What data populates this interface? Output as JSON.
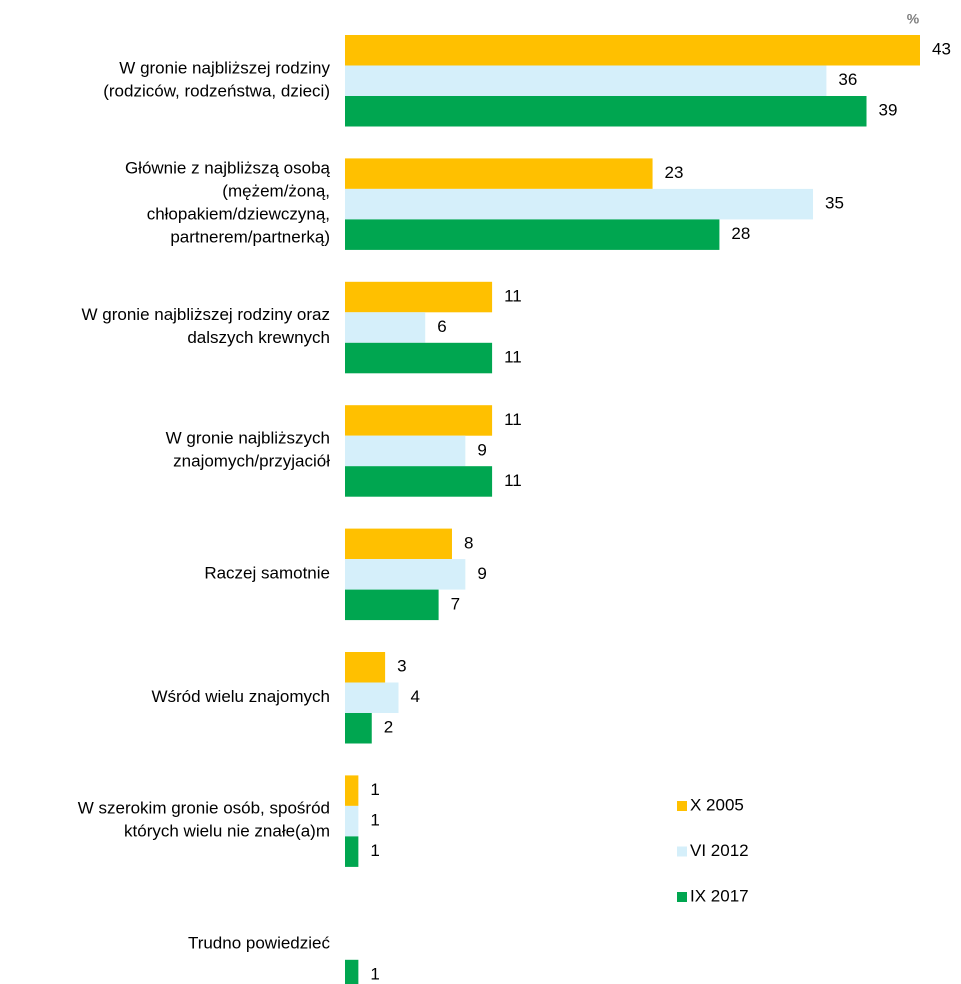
{
  "chart_data": {
    "type": "hbar",
    "unit_label": "%",
    "categories": [
      "W gronie najbliższej rodziny\n(rodziców, rodzeństwa, dzieci)",
      "Głównie z najbliższą osobą\n(mężem/żoną,\nchłopakiem/dziewczyną,\npartnerem/partnerką)",
      "W gronie najbliższej rodziny oraz\ndalszych krewnych",
      "W gronie najbliższych\nznajomych/przyjaciół",
      "Raczej samotnie",
      "Wśród wielu znajomych",
      "W szerokim gronie osób, spośród\nktórych wielu nie znałe(a)m",
      "Trudno powiedzieć"
    ],
    "series": [
      {
        "name": "X 2005",
        "color": "#FFC000",
        "values": [
          43,
          23,
          11,
          11,
          8,
          3,
          1,
          null
        ]
      },
      {
        "name": "VI 2012",
        "color": "#D5EFFA",
        "values": [
          36,
          35,
          6,
          9,
          9,
          4,
          1,
          null
        ]
      },
      {
        "name": "IX 2017",
        "color": "#00A650",
        "values": [
          39,
          28,
          11,
          11,
          7,
          2,
          1,
          1
        ]
      }
    ],
    "xlim": [
      0,
      43
    ]
  }
}
